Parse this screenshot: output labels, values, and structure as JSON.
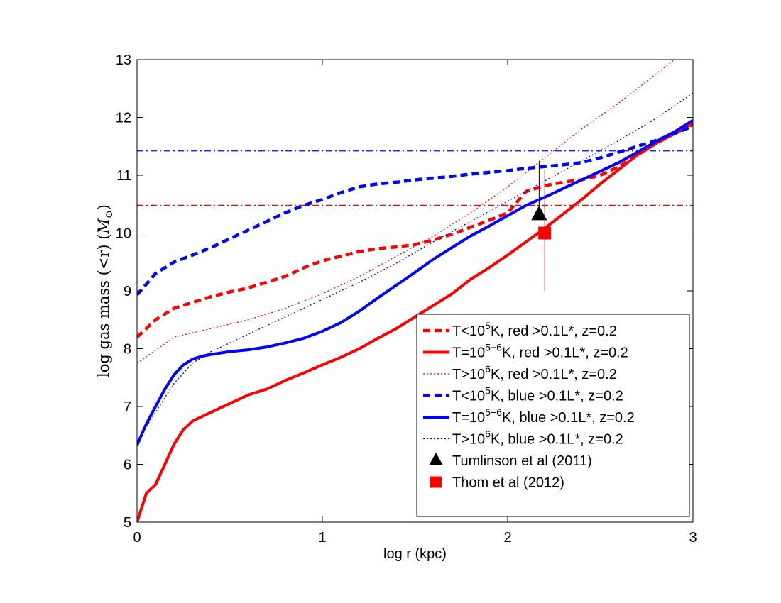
{
  "chart_data": {
    "type": "line",
    "xlabel": "log r (kpc)",
    "ylabel": "log gas mass (<r) (M_⊙)",
    "ylabel_parts": {
      "main": "log gas mass (<r) (",
      "sym": "M",
      "sub": "⊙",
      "close": ")"
    },
    "xlim": [
      0,
      3
    ],
    "ylim": [
      5,
      13
    ],
    "xticks": [
      0,
      1,
      2,
      3
    ],
    "yticks": [
      5,
      6,
      7,
      8,
      9,
      10,
      11,
      12,
      13
    ],
    "grid": false,
    "legend_position": "bottom-right",
    "colors": {
      "red": "#ff0000",
      "blue": "#0000ff",
      "black": "#000000"
    },
    "series": [
      {
        "name": "T<10^5K, red >0.1L*, z=0.2",
        "label": {
          "pre": "T<10",
          "sup": "5",
          "post": "K, red >0.1L*, z=0.2"
        },
        "color": "#ff0000",
        "style": "dashed",
        "x": [
          0,
          0.1,
          0.2,
          0.3,
          0.4,
          0.5,
          0.6,
          0.7,
          0.8,
          0.9,
          1.0,
          1.1,
          1.2,
          1.3,
          1.4,
          1.5,
          1.6,
          1.7,
          1.8,
          1.9,
          2.0,
          2.1,
          2.2,
          2.3,
          2.4,
          2.5,
          2.6,
          2.7,
          2.8,
          2.9,
          3.0
        ],
        "y": [
          8.2,
          8.5,
          8.7,
          8.8,
          8.9,
          8.98,
          9.05,
          9.15,
          9.25,
          9.4,
          9.52,
          9.6,
          9.68,
          9.73,
          9.76,
          9.8,
          9.88,
          9.98,
          10.1,
          10.22,
          10.35,
          10.72,
          10.82,
          10.88,
          10.92,
          11.0,
          11.15,
          11.35,
          11.55,
          11.72,
          11.88
        ]
      },
      {
        "name": "T=10^5-6K, red >0.1L*, z=0.2",
        "label": {
          "pre": "T=10",
          "sup": "5−6",
          "post": "K, red >0.1L*, z=0.2"
        },
        "color": "#ff0000",
        "style": "solid",
        "x": [
          0,
          0.05,
          0.1,
          0.15,
          0.2,
          0.25,
          0.3,
          0.4,
          0.5,
          0.6,
          0.7,
          0.8,
          0.9,
          1.0,
          1.1,
          1.2,
          1.3,
          1.4,
          1.5,
          1.6,
          1.7,
          1.8,
          1.9,
          2.0,
          2.1,
          2.2,
          2.3,
          2.4,
          2.5,
          2.6,
          2.7,
          2.8,
          2.9,
          3.0
        ],
        "y": [
          5.0,
          5.5,
          5.65,
          6.0,
          6.35,
          6.6,
          6.75,
          6.9,
          7.05,
          7.2,
          7.3,
          7.45,
          7.58,
          7.72,
          7.85,
          8.0,
          8.18,
          8.35,
          8.55,
          8.75,
          8.95,
          9.2,
          9.4,
          9.62,
          9.85,
          10.08,
          10.33,
          10.58,
          10.85,
          11.1,
          11.35,
          11.55,
          11.72,
          11.9
        ]
      },
      {
        "name": "T>10^6K, red >0.1L*, z=0.2",
        "label": {
          "pre": "T>10",
          "sup": "6",
          "post": "K, red >0.1L*, z=0.2"
        },
        "color": "#ff0000",
        "style": "dotted",
        "x": [
          0,
          0.2,
          0.4,
          0.6,
          0.8,
          1.0,
          1.2,
          1.4,
          1.6,
          1.8,
          2.0,
          2.2,
          2.4,
          2.6,
          2.8,
          2.9
        ],
        "y": [
          7.75,
          8.2,
          8.35,
          8.5,
          8.7,
          8.95,
          9.25,
          9.6,
          9.95,
          10.35,
          10.8,
          11.3,
          11.8,
          12.25,
          12.75,
          13.0
        ]
      },
      {
        "name": "T<10^5K, blue >0.1L*, z=0.2",
        "label": {
          "pre": "T<10",
          "sup": "5",
          "post": "K, blue >0.1L*, z=0.2"
        },
        "color": "#0000ff",
        "style": "dashed",
        "x": [
          0,
          0.1,
          0.2,
          0.3,
          0.4,
          0.5,
          0.6,
          0.7,
          0.8,
          0.9,
          1.0,
          1.1,
          1.2,
          1.3,
          1.4,
          1.5,
          1.6,
          1.7,
          1.8,
          1.9,
          2.0,
          2.1,
          2.2,
          2.3,
          2.4,
          2.5,
          2.6,
          2.7,
          2.8,
          2.9,
          3.0
        ],
        "y": [
          8.93,
          9.3,
          9.5,
          9.62,
          9.75,
          9.9,
          10.05,
          10.2,
          10.35,
          10.48,
          10.58,
          10.7,
          10.8,
          10.85,
          10.88,
          10.92,
          10.95,
          10.98,
          11.02,
          11.05,
          11.08,
          11.12,
          11.15,
          11.18,
          11.22,
          11.3,
          11.4,
          11.5,
          11.6,
          11.72,
          11.85
        ]
      },
      {
        "name": "T=10^5-6K, blue >0.1L*, z=0.2",
        "label": {
          "pre": "T=10",
          "sup": "5−6",
          "post": "K, blue >0.1L*, z=0.2"
        },
        "color": "#0000ff",
        "style": "solid",
        "x": [
          0,
          0.05,
          0.1,
          0.15,
          0.2,
          0.25,
          0.3,
          0.35,
          0.4,
          0.5,
          0.6,
          0.7,
          0.8,
          0.9,
          1.0,
          1.1,
          1.2,
          1.3,
          1.4,
          1.5,
          1.6,
          1.7,
          1.8,
          1.9,
          2.0,
          2.1,
          2.2,
          2.3,
          2.4,
          2.5,
          2.6,
          2.7,
          2.8,
          2.9,
          3.0
        ],
        "y": [
          6.33,
          6.7,
          7.0,
          7.3,
          7.55,
          7.72,
          7.82,
          7.87,
          7.9,
          7.95,
          7.98,
          8.03,
          8.1,
          8.18,
          8.3,
          8.45,
          8.65,
          8.88,
          9.1,
          9.32,
          9.55,
          9.75,
          9.95,
          10.12,
          10.3,
          10.48,
          10.62,
          10.77,
          10.92,
          11.07,
          11.22,
          11.4,
          11.58,
          11.75,
          11.95
        ]
      },
      {
        "name": "T>10^6K, blue >0.1L*, z=0.2",
        "label": {
          "pre": "T>10",
          "sup": "6",
          "post": "K, blue >0.1L*, z=0.2"
        },
        "color": "#0000ff",
        "style": "dotted",
        "x": [
          0,
          0.1,
          0.2,
          0.3,
          0.4,
          0.5,
          0.6,
          0.8,
          1.0,
          1.2,
          1.4,
          1.6,
          1.8,
          2.0,
          2.2,
          2.4,
          2.6,
          2.8,
          3.0
        ],
        "y": [
          6.4,
          6.9,
          7.4,
          7.75,
          7.95,
          8.1,
          8.25,
          8.55,
          8.85,
          9.15,
          9.48,
          9.85,
          10.2,
          10.55,
          10.9,
          11.25,
          11.6,
          11.98,
          12.42
        ]
      }
    ],
    "reference_lines": [
      {
        "name": "blue-reference",
        "y": 11.42,
        "color": "#0000ff",
        "style": "dashdot"
      },
      {
        "name": "red-reference",
        "y": 10.48,
        "color": "#ff0000",
        "style": "dashdot"
      }
    ],
    "points": [
      {
        "name": "Tumlinson et al (2011)",
        "x": 2.17,
        "y": 10.32,
        "err_low": 10.32,
        "err_high": 11.25,
        "marker": "triangle",
        "color": "#000000"
      },
      {
        "name": "Thom et al (2012)",
        "x": 2.2,
        "y": 10.0,
        "err_low": 9.0,
        "err_high": 11.1,
        "marker": "square",
        "color": "#ff0000"
      }
    ]
  }
}
